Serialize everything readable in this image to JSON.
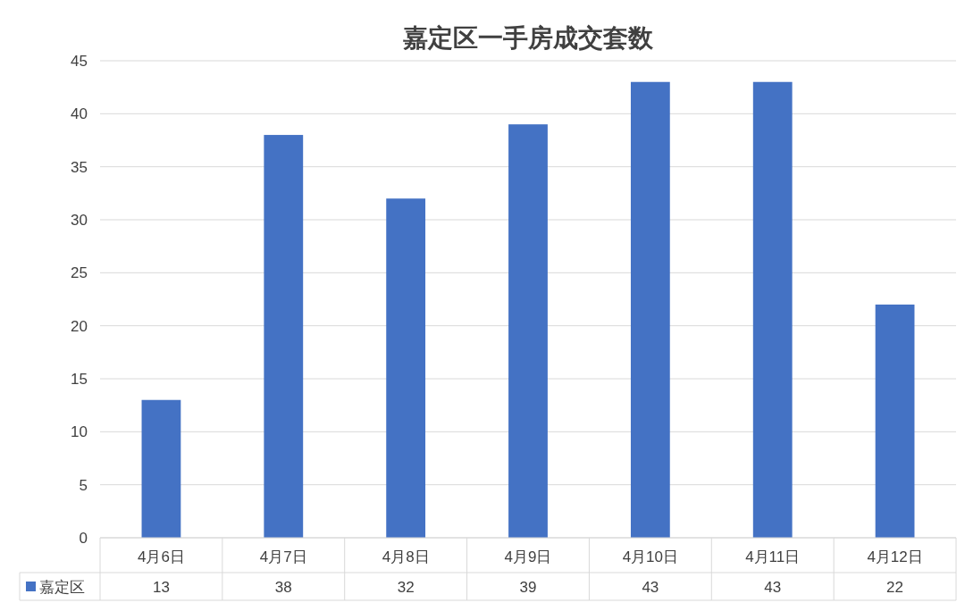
{
  "chart_data": {
    "type": "bar",
    "title": "嘉定区一手房成交套数",
    "categories": [
      "4月6日",
      "4月7日",
      "4月8日",
      "4月9日",
      "4月10日",
      "4月11日",
      "4月12日"
    ],
    "series": [
      {
        "name": "嘉定区",
        "color": "#4472c4",
        "values": [
          13,
          38,
          32,
          39,
          43,
          43,
          22
        ]
      }
    ],
    "ylim": [
      0,
      45
    ],
    "yticks": [
      0,
      5,
      10,
      15,
      20,
      25,
      30,
      35,
      40,
      45
    ],
    "grid": "y",
    "legend": "bottom",
    "data_labels": true
  }
}
